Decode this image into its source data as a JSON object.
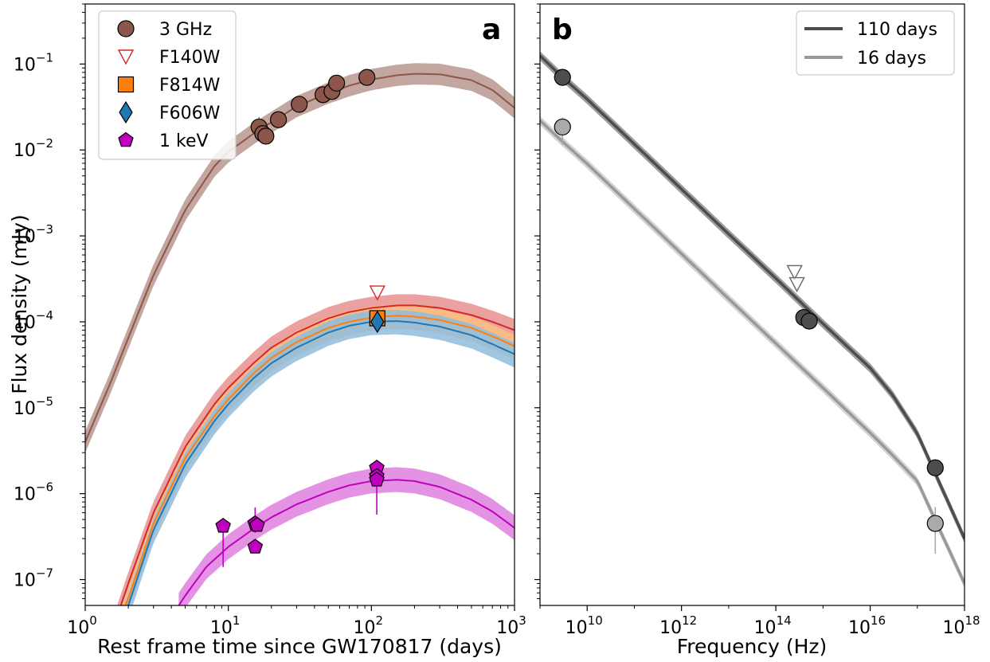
{
  "chart_data": [
    {
      "type": "line",
      "panel_label": "a",
      "xlabel": "Rest frame time since GW170817 (days)",
      "ylabel": "Flux density (mJy)",
      "x_scale": "log",
      "y_scale": "log",
      "xlim": [
        1,
        1000
      ],
      "ylim": [
        5e-08,
        0.5
      ],
      "x_ticks": [
        {
          "value": 1,
          "base": "10",
          "exp": "0"
        },
        {
          "value": 10,
          "base": "10",
          "exp": "1"
        },
        {
          "value": 100,
          "base": "10",
          "exp": "2"
        },
        {
          "value": 1000,
          "base": "10",
          "exp": "3"
        }
      ],
      "y_ticks": [
        {
          "value": 1e-07,
          "base": "10",
          "exp": "−7"
        },
        {
          "value": 1e-06,
          "base": "10",
          "exp": "−6"
        },
        {
          "value": 1e-05,
          "base": "10",
          "exp": "−5"
        },
        {
          "value": 0.0001,
          "base": "10",
          "exp": "−4"
        },
        {
          "value": 0.001,
          "base": "10",
          "exp": "−3"
        },
        {
          "value": 0.01,
          "base": "10",
          "exp": "−2"
        },
        {
          "value": 0.1,
          "base": "10",
          "exp": "−1"
        }
      ],
      "grid": false,
      "legend_position": "top-left",
      "series": [
        {
          "name": "3 GHz",
          "color": "#8c564b",
          "band_color": "#b8978e",
          "marker": "circle",
          "model": {
            "x": [
              1,
              1.5,
              2,
              3,
              5,
              8,
              10,
              15,
              20,
              30,
              50,
              70,
              100,
              150,
              200,
              300,
              500,
              700,
              1000
            ],
            "y": [
              4e-06,
              1.95e-05,
              6.5e-05,
              0.00035,
              0.002,
              0.0065,
              0.0095,
              0.0155,
              0.021,
              0.032,
              0.046,
              0.056,
              0.066,
              0.074,
              0.077,
              0.076,
              0.065,
              0.05,
              0.031
            ],
            "band_lower_factor": 0.75,
            "band_upper_factor": 1.33
          },
          "points": [
            {
              "x": 16.4,
              "y": 0.0185,
              "yerr_low": 0.005,
              "yerr_high": 0.0055
            },
            {
              "x": 17.4,
              "y": 0.0155
            },
            {
              "x": 18.3,
              "y": 0.0145
            },
            {
              "x": 22.4,
              "y": 0.0225
            },
            {
              "x": 31.3,
              "y": 0.034
            },
            {
              "x": 45.9,
              "y": 0.044
            },
            {
              "x": 53.0,
              "y": 0.048
            },
            {
              "x": 57.1,
              "y": 0.06
            },
            {
              "x": 93.0,
              "y": 0.07
            }
          ]
        },
        {
          "name": "F140W",
          "color": "#d62728",
          "band_color": "#e8908f",
          "marker": "triangle-down-open",
          "model": {
            "x": [
              1.6,
              2,
              3,
              5,
              8,
              10,
              15,
              20,
              30,
              50,
              70,
              100,
              150,
              200,
              300,
              500,
              700,
              1000
            ],
            "y": [
              3e-08,
              9e-08,
              6e-07,
              3.5e-06,
              1.1e-05,
              1.7e-05,
              3.3e-05,
              5e-05,
              7.5e-05,
              0.00011,
              0.00013,
              0.000145,
              0.000155,
              0.000155,
              0.000145,
              0.00012,
              0.0001,
              8e-05
            ],
            "band_lower_factor": 0.7,
            "band_upper_factor": 1.35
          },
          "points": [
            {
              "x": 110,
              "y": 0.00022
            }
          ]
        },
        {
          "name": "F814W",
          "color": "#ff7f0e",
          "band_color": "#fbbf80",
          "marker": "square",
          "model": {
            "x": [
              1.8,
              2,
              3,
              5,
              8,
              10,
              15,
              20,
              30,
              50,
              70,
              100,
              150,
              200,
              300,
              500,
              700,
              1000
            ],
            "y": [
              4e-08,
              6e-08,
              4.5e-07,
              2.6e-06,
              8e-06,
              1.25e-05,
              2.5e-05,
              3.8e-05,
              5.8e-05,
              8.5e-05,
              0.0001,
              0.000112,
              0.000118,
              0.000115,
              0.000105,
              8.5e-05,
              6.8e-05,
              5.2e-05
            ],
            "band_lower_factor": 0.7,
            "band_upper_factor": 1.35
          },
          "points": [
            {
              "x": 110,
              "y": 0.00011,
              "yerr_low": 1.5e-05,
              "yerr_high": 1.5e-05
            }
          ]
        },
        {
          "name": "F606W",
          "color": "#1f77b4",
          "band_color": "#8fbcdc",
          "marker": "diamond",
          "model": {
            "x": [
              1.9,
              2,
              3,
              5,
              8,
              10,
              15,
              20,
              30,
              50,
              70,
              100,
              150,
              200,
              300,
              500,
              700,
              1000
            ],
            "y": [
              4e-08,
              5e-08,
              3.8e-07,
              2.2e-06,
              7e-06,
              1.1e-05,
              2.2e-05,
              3.3e-05,
              5e-05,
              7.5e-05,
              9e-05,
              0.0001,
              0.000102,
              9.8e-05,
              8.8e-05,
              7e-05,
              5.5e-05,
              4.2e-05
            ],
            "band_lower_factor": 0.7,
            "band_upper_factor": 1.35
          },
          "points": [
            {
              "x": 110,
              "y": 0.0001,
              "yerr_low": 1.5e-05,
              "yerr_high": 1.5e-05
            }
          ]
        },
        {
          "name": "1 keV",
          "color": "#bf00bf",
          "band_color": "#df80df",
          "marker": "pentagon",
          "model": {
            "x": [
              4.5,
              5,
              7,
              10,
              15,
              20,
              30,
              50,
              70,
              100,
              150,
              200,
              300,
              500,
              700,
              1000
            ],
            "y": [
              5e-08,
              6.5e-08,
              1.4e-07,
              2.4e-07,
              3.9e-07,
              5.3e-07,
              7.5e-07,
              1.05e-06,
              1.25e-06,
              1.4e-06,
              1.45e-06,
              1.4e-06,
              1.2e-06,
              8.5e-07,
              6.2e-07,
              4e-07
            ],
            "band_lower_factor": 0.72,
            "band_upper_factor": 1.4
          },
          "points": [
            {
              "x": 9.2,
              "y": 4.2e-07,
              "yerr_low": 2.8e-07,
              "yerr_high": 1e-08
            },
            {
              "x": 15.4,
              "y": 4.5e-07,
              "yerr_low": 1e-07,
              "yerr_high": 2.4e-07
            },
            {
              "x": 15.9,
              "y": 4.3e-07
            },
            {
              "x": 15.4,
              "y": 2.4e-07
            },
            {
              "x": 109,
              "y": 2e-06,
              "yerr_low": 2e-07,
              "yerr_high": 2e-07
            },
            {
              "x": 109,
              "y": 1.6e-06
            },
            {
              "x": 109,
              "y": 1.45e-06,
              "yerr_low": 8.8e-07,
              "yerr_high": 1e-07
            }
          ]
        }
      ]
    },
    {
      "type": "line",
      "panel_label": "b",
      "xlabel": "Frequency (Hz)",
      "ylabel": "",
      "x_scale": "log",
      "y_scale": "log",
      "xlim": [
        1000000000.0,
        1e+18
      ],
      "ylim": [
        5e-08,
        0.5
      ],
      "x_ticks": [
        {
          "value": 10000000000.0,
          "base": "10",
          "exp": "10"
        },
        {
          "value": 1000000000000.0,
          "base": "10",
          "exp": "12"
        },
        {
          "value": 100000000000000.0,
          "base": "10",
          "exp": "14"
        },
        {
          "value": 1e+16,
          "base": "10",
          "exp": "16"
        },
        {
          "value": 1e+18,
          "base": "10",
          "exp": "18"
        }
      ],
      "grid": false,
      "legend_position": "top-right",
      "series": [
        {
          "name": "110 days",
          "color": "#4d4d4d",
          "band_color": "#8c8c8c",
          "model": {
            "x": [
              1000000000.0,
              3000000000.0,
              10000000000.0,
              100000000000.0,
              1000000000000.0,
              10000000000000.0,
              100000000000000.0,
              1000000000000000.0,
              1e+16,
              3e+16,
              1e+17,
              1e+18
            ],
            "y": [
              0.125,
              0.07,
              0.039,
              0.0117,
              0.0035,
              0.00105,
              0.00032,
              9.5e-05,
              2.9e-05,
              1.4e-05,
              5e-06,
              3e-07
            ],
            "band_lower_factor": 0.88,
            "band_upper_factor": 1.13
          },
          "points": [
            {
              "x": 3000000000.0,
              "y": 0.07,
              "marker": "circle",
              "color": "#4d4d4d"
            },
            {
              "x": 250000000000000.0,
              "y": 0.00038,
              "marker": "triangle-down-open",
              "color": "#666666"
            },
            {
              "x": 390000000000000.0,
              "y": 0.000112,
              "marker": "circle",
              "color": "#4d4d4d"
            },
            {
              "x": 510000000000000.0,
              "y": 0.000102,
              "marker": "circle",
              "color": "#4d4d4d"
            },
            {
              "x": 2.4e+17,
              "y": 2e-06,
              "yerr_low": 3e-07,
              "yerr_high": 5e-07,
              "marker": "circle",
              "color": "#4d4d4d"
            }
          ]
        },
        {
          "name": "16 days",
          "color": "#999999",
          "band_color": "#cccccc",
          "model": {
            "x": [
              1000000000.0,
              3000000000.0,
              10000000000.0,
              100000000000.0,
              1000000000000.0,
              10000000000000.0,
              100000000000000.0,
              1000000000000000.0,
              1e+16,
              3e+16,
              1e+17,
              1e+18
            ],
            "y": [
              0.022,
              0.0125,
              0.0069,
              0.00207,
              0.00062,
              0.000185,
              5.6e-05,
              1.7e-05,
              5.1e-06,
              2.8e-06,
              1.4e-06,
              9e-08
            ],
            "band_lower_factor": 0.88,
            "band_upper_factor": 1.13
          },
          "points": [
            {
              "x": 3000000000.0,
              "y": 0.0185,
              "yerr_low": 0.007,
              "yerr_high": 0.0055,
              "marker": "circle",
              "color": "#aaaaaa"
            },
            {
              "x": 280000000000000.0,
              "y": 0.000275,
              "marker": "triangle-down-open",
              "color": "#666666"
            },
            {
              "x": 2.4e+17,
              "y": 4.5e-07,
              "yerr_low": 2.5e-07,
              "yerr_high": 2.5e-07,
              "marker": "circle",
              "color": "#aaaaaa"
            }
          ]
        }
      ]
    }
  ]
}
